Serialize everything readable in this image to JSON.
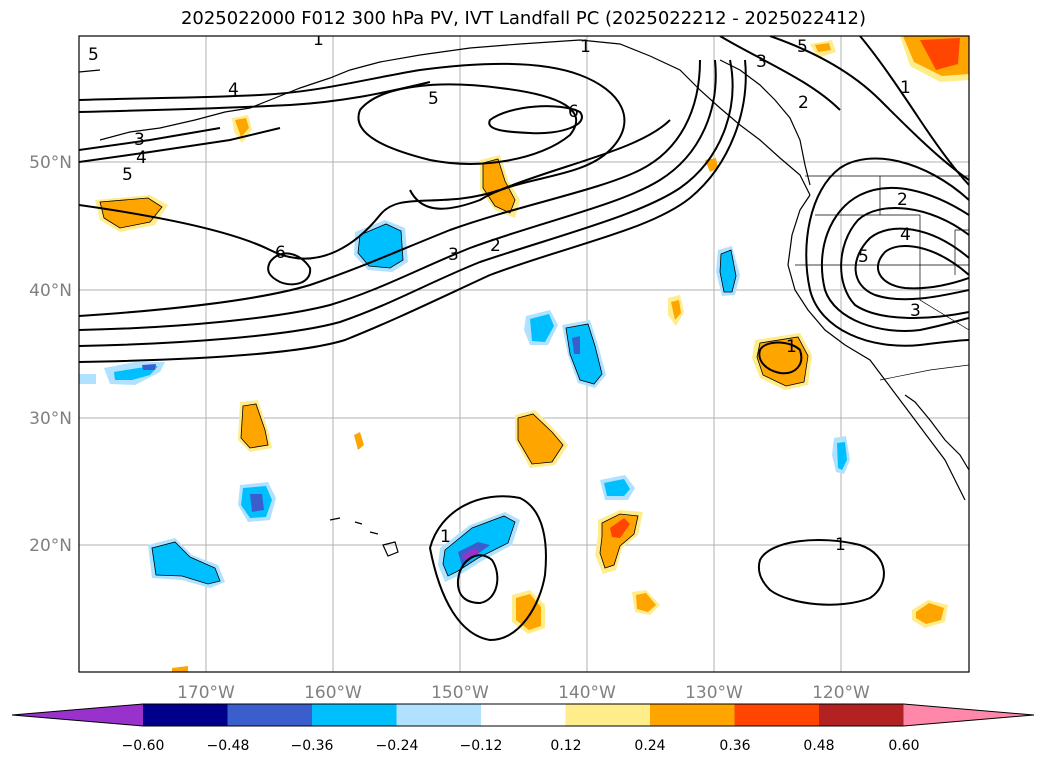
{
  "title": "2025022000 F012 300 hPa PV, IVT Landfall PC (2025022212 - 2025022412)",
  "map": {
    "lon_ticks": [
      "170°W",
      "160°W",
      "150°W",
      "140°W",
      "130°W",
      "120°W"
    ],
    "lat_ticks": [
      "50°N",
      "40°N",
      "30°N",
      "20°N"
    ],
    "contour_labels": [
      "5",
      "1",
      "1",
      "4",
      "3",
      "4",
      "5",
      "5",
      "6",
      "6",
      "3",
      "2",
      "5",
      "3",
      "2",
      "1",
      "2",
      "4",
      "5",
      "3",
      "1",
      "1",
      "1"
    ]
  },
  "colorbar": {
    "ticks": [
      "−0.60",
      "−0.48",
      "−0.36",
      "−0.24",
      "−0.12",
      "0.12",
      "0.24",
      "0.36",
      "0.48",
      "0.60"
    ],
    "colors": [
      "#9932cc",
      "#00008b",
      "#3a5fcd",
      "#00bfff",
      "#b0e2ff",
      "#ffffff",
      "#ffec8b",
      "#ffa500",
      "#ff4500",
      "#b22222",
      "#ff88aa"
    ]
  }
}
